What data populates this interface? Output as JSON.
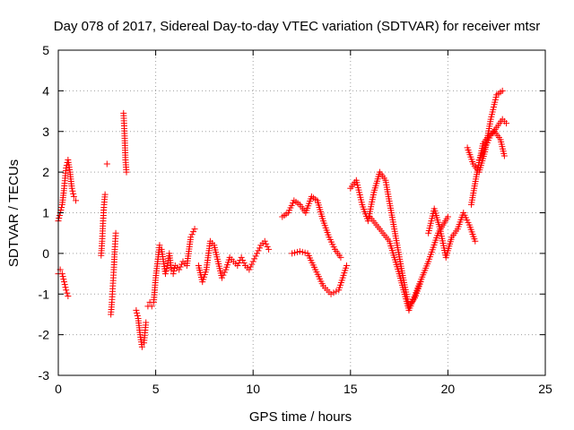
{
  "chart_data": {
    "type": "scatter",
    "title": "Day 078 of 2017, Sidereal Day-to-day VTEC variation (SDTVAR) for receiver mtsr",
    "xlabel": "GPS time / hours",
    "ylabel": "SDTVAR / TECUs",
    "xlim": [
      0,
      25
    ],
    "ylim": [
      -3,
      5
    ],
    "xticks": [
      0,
      5,
      10,
      15,
      20,
      25
    ],
    "yticks": [
      -3,
      -2,
      -1,
      0,
      1,
      2,
      3,
      4,
      5
    ],
    "grid": true,
    "marker": "+",
    "color": "#ff0000",
    "series": [
      {
        "name": "SDTVAR",
        "segments": [
          {
            "x": [
              0.0,
              0.1,
              0.2,
              0.3,
              0.4,
              0.5,
              0.6,
              0.7,
              0.8,
              0.9
            ],
            "y": [
              0.8,
              1.0,
              1.2,
              1.6,
              2.1,
              2.3,
              2.0,
              1.6,
              1.4,
              1.3
            ]
          },
          {
            "x": [
              0.0,
              0.1,
              0.2,
              0.3,
              0.4,
              0.5
            ],
            "y": [
              -0.5,
              -0.4,
              -0.5,
              -0.7,
              -0.9,
              -1.05
            ]
          },
          {
            "x": [
              2.2,
              2.25,
              2.3,
              2.35,
              2.4
            ],
            "y": [
              -0.05,
              0.3,
              0.8,
              1.2,
              1.45
            ]
          },
          {
            "x": [
              2.5
            ],
            "y": [
              2.2
            ]
          },
          {
            "x": [
              2.7,
              2.75,
              2.8,
              2.85,
              2.9,
              2.95
            ],
            "y": [
              -1.5,
              -1.2,
              -0.8,
              -0.4,
              0.1,
              0.5
            ]
          },
          {
            "x": [
              3.35,
              3.4,
              3.45,
              3.5
            ],
            "y": [
              3.45,
              2.95,
              2.3,
              2.0
            ]
          },
          {
            "x": [
              4.0,
              4.1,
              4.2,
              4.3,
              4.4,
              4.5
            ],
            "y": [
              -1.4,
              -1.6,
              -2.0,
              -2.3,
              -2.2,
              -1.7
            ]
          },
          {
            "x": [
              4.6,
              4.7,
              4.8,
              4.9,
              5.0,
              5.1,
              5.2,
              5.3,
              5.4,
              5.5,
              5.6,
              5.7,
              5.8,
              5.9,
              6.0,
              6.2,
              6.4,
              6.6,
              6.8,
              7.0
            ],
            "y": [
              -1.3,
              -1.2,
              -1.3,
              -1.2,
              -0.6,
              -0.2,
              0.2,
              0.1,
              -0.2,
              -0.5,
              -0.3,
              0.0,
              -0.4,
              -0.5,
              -0.3,
              -0.4,
              -0.2,
              -0.3,
              0.4,
              0.6
            ]
          },
          {
            "x": [
              7.2,
              7.4,
              7.6,
              7.8,
              8.0,
              8.2,
              8.4,
              8.6,
              8.8,
              9.0,
              9.2,
              9.4,
              9.6,
              9.8,
              10.0,
              10.2,
              10.4,
              10.6,
              10.8
            ],
            "y": [
              -0.3,
              -0.7,
              -0.4,
              0.3,
              0.2,
              -0.2,
              -0.6,
              -0.4,
              -0.1,
              -0.2,
              -0.3,
              -0.1,
              -0.3,
              -0.4,
              -0.2,
              0.0,
              0.2,
              0.3,
              0.1
            ]
          },
          {
            "x": [
              11.5,
              11.8,
              12.1,
              12.4,
              12.7,
              13.0,
              13.3,
              13.6,
              13.9,
              14.2,
              14.5
            ],
            "y": [
              0.9,
              1.0,
              1.3,
              1.2,
              1.0,
              1.4,
              1.3,
              0.8,
              0.4,
              0.1,
              -0.1
            ]
          },
          {
            "x": [
              12.0,
              12.4,
              12.8,
              13.2,
              13.6,
              14.0,
              14.4,
              14.8
            ],
            "y": [
              0.0,
              0.05,
              0.0,
              -0.4,
              -0.8,
              -1.0,
              -0.9,
              -0.3
            ]
          },
          {
            "x": [
              15.0,
              15.3,
              15.6,
              15.9,
              16.2,
              16.5,
              16.8,
              17.1,
              17.4,
              17.7,
              18.0,
              18.3,
              18.6
            ],
            "y": [
              1.6,
              1.8,
              1.2,
              0.8,
              1.5,
              2.0,
              1.8,
              1.0,
              0.2,
              -0.6,
              -1.3,
              -1.1,
              -0.7
            ]
          },
          {
            "x": [
              16.0,
              16.5,
              17.0,
              17.5,
              18.0,
              18.5,
              19.0,
              19.5,
              20.0
            ],
            "y": [
              0.9,
              0.6,
              0.3,
              -0.5,
              -1.4,
              -0.8,
              -0.2,
              0.5,
              0.9
            ]
          },
          {
            "x": [
              19.0,
              19.3,
              19.6,
              19.9,
              20.2,
              20.5,
              20.8,
              21.1,
              21.4
            ],
            "y": [
              0.5,
              1.1,
              0.6,
              -0.1,
              0.4,
              0.6,
              1.0,
              0.7,
              0.3
            ]
          },
          {
            "x": [
              21.0,
              21.3,
              21.6,
              21.9,
              22.2,
              22.5,
              22.8
            ],
            "y": [
              2.6,
              2.2,
              2.0,
              2.5,
              3.3,
              3.9,
              4.0
            ]
          },
          {
            "x": [
              21.2,
              21.5,
              21.8,
              22.1,
              22.4,
              22.7,
              22.9
            ],
            "y": [
              1.2,
              2.0,
              2.7,
              2.9,
              3.0,
              2.8,
              2.4
            ]
          },
          {
            "x": [
              21.6,
              21.9,
              22.2,
              22.5,
              22.8,
              23.0
            ],
            "y": [
              2.3,
              2.6,
              2.9,
              3.1,
              3.3,
              3.2
            ]
          }
        ]
      }
    ]
  }
}
